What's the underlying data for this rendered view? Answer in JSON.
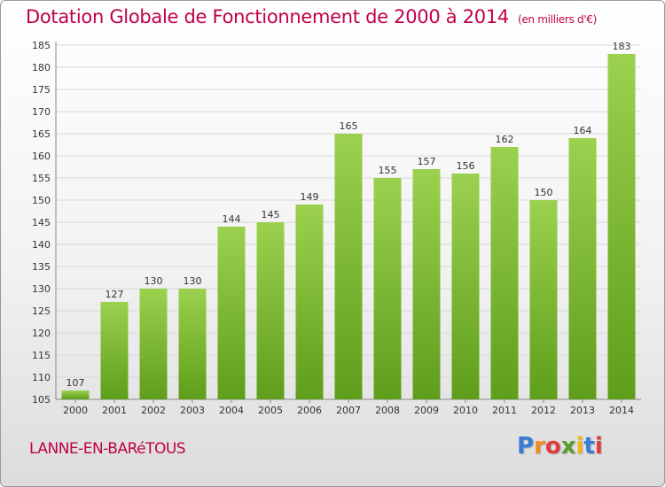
{
  "header": {
    "title": "Dotation Globale de Fonctionnement de 2000 à 2014",
    "unit_note": "(en milliers d'€)"
  },
  "footer": {
    "commune": "LANNE-EN-BARéTOUS",
    "logo_text": "Proxiti",
    "logo_letters": [
      {
        "ch": "P",
        "color": "#3a7bd5"
      },
      {
        "ch": "r",
        "color": "#f28a1a"
      },
      {
        "ch": "o",
        "color": "#e23b3b"
      },
      {
        "ch": "x",
        "color": "#5aa02c"
      },
      {
        "ch": "i",
        "color": "#f2b81a"
      },
      {
        "ch": "t",
        "color": "#3a7bd5"
      },
      {
        "ch": "i",
        "color": "#e23b3b"
      }
    ]
  },
  "colors": {
    "accent": "#c0004a",
    "bar_top": "#9bd14f",
    "bar_bottom": "#5e9e1a",
    "grid": "#d8d8d8"
  },
  "chart_data": {
    "type": "bar",
    "categories": [
      "2000",
      "2001",
      "2002",
      "2003",
      "2004",
      "2005",
      "2006",
      "2007",
      "2008",
      "2009",
      "2010",
      "2011",
      "2012",
      "2013",
      "2014"
    ],
    "values": [
      107,
      127,
      130,
      130,
      144,
      145,
      149,
      165,
      155,
      157,
      156,
      162,
      150,
      164,
      183
    ],
    "title": "Dotation Globale de Fonctionnement de 2000 à 2014",
    "subtitle": "(en milliers d'€)",
    "xlabel": "",
    "ylabel": "",
    "ylim": [
      105,
      185
    ],
    "yticks": [
      105,
      110,
      115,
      120,
      125,
      130,
      135,
      140,
      145,
      150,
      155,
      160,
      165,
      170,
      175,
      180,
      185
    ],
    "grid": true,
    "data_labels": true
  }
}
